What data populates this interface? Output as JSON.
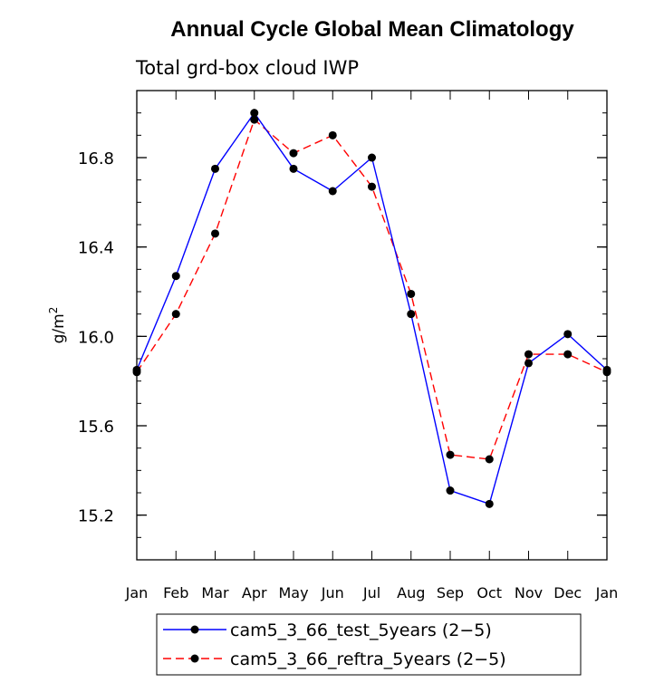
{
  "chart_data": {
    "type": "line",
    "title": "Annual Cycle Global Mean Climatology",
    "subtitle": "Total grd-box cloud IWP",
    "ylabel_base": "g/m",
    "ylabel_exp": "2",
    "xlabel": "",
    "categories": [
      "Jan",
      "Feb",
      "Mar",
      "Apr",
      "May",
      "Jun",
      "Jul",
      "Aug",
      "Sep",
      "Oct",
      "Nov",
      "Dec",
      "Jan"
    ],
    "ylim": [
      15.0,
      17.1
    ],
    "yticks": [
      15.2,
      15.6,
      16.0,
      16.4,
      16.8
    ],
    "ytick_labels": [
      "15.2",
      "15.6",
      "16.0",
      "16.4",
      "16.8"
    ],
    "series": [
      {
        "name": "cam5_3_66_test_5years (2−5)",
        "color": "#0000ff",
        "style": "solid",
        "values": [
          15.85,
          16.27,
          16.75,
          17.0,
          16.75,
          16.65,
          16.8,
          16.1,
          15.31,
          15.25,
          15.88,
          16.01,
          15.85
        ]
      },
      {
        "name": "cam5_3_66_reftra_5years (2−5)",
        "color": "#ff0000",
        "style": "dashed",
        "values": [
          15.84,
          16.1,
          16.46,
          16.97,
          16.82,
          16.9,
          16.67,
          16.19,
          15.47,
          15.45,
          15.92,
          15.92,
          15.84
        ]
      }
    ],
    "legend_position": "bottom"
  }
}
